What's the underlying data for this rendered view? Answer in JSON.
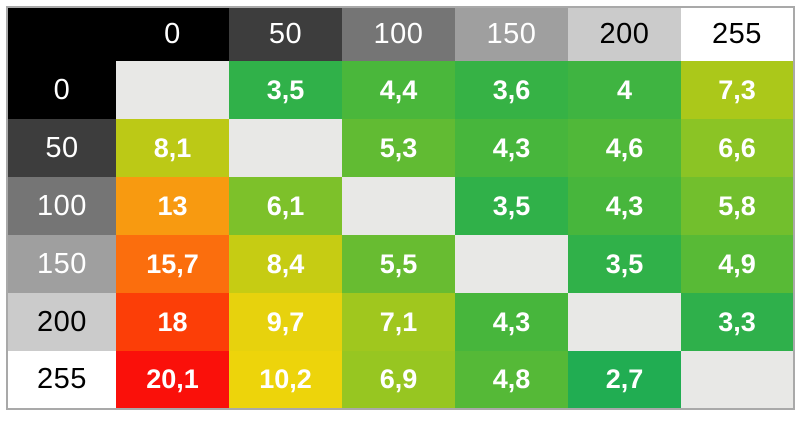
{
  "chart_data": {
    "type": "heatmap",
    "title": "",
    "col_headers": [
      "0",
      "50",
      "100",
      "150",
      "200",
      "255"
    ],
    "row_headers": [
      "0",
      "50",
      "100",
      "150",
      "200",
      "255"
    ],
    "labels": [
      [
        null,
        "3,5",
        "4,4",
        "3,6",
        "4",
        "7,3"
      ],
      [
        "8,1",
        null,
        "5,3",
        "4,3",
        "4,6",
        "6,6"
      ],
      [
        "13",
        "6,1",
        null,
        "3,5",
        "4,3",
        "5,8"
      ],
      [
        "15,7",
        "8,4",
        "5,5",
        null,
        "3,5",
        "4,9"
      ],
      [
        "18",
        "9,7",
        "7,1",
        "4,3",
        null,
        "3,3"
      ],
      [
        "20,1",
        "10,2",
        "6,9",
        "4,8",
        "2,7",
        null
      ]
    ],
    "values": [
      [
        null,
        3.5,
        4.4,
        3.6,
        4.0,
        7.3
      ],
      [
        8.1,
        null,
        5.3,
        4.3,
        4.6,
        6.6
      ],
      [
        13.0,
        6.1,
        null,
        3.5,
        4.3,
        5.8
      ],
      [
        15.7,
        8.4,
        5.5,
        null,
        3.5,
        4.9
      ],
      [
        18.0,
        9.7,
        7.1,
        4.3,
        null,
        3.3
      ],
      [
        20.1,
        10.2,
        6.9,
        4.8,
        2.7,
        null
      ]
    ],
    "cell_colors": [
      [
        null,
        "#30b149",
        "#4ab73b",
        "#36b245",
        "#3fb441",
        "#abc81a"
      ],
      [
        "#bcc916",
        null,
        "#61bb33",
        "#47b63c",
        "#50b839",
        "#8bc425"
      ],
      [
        "#f89a10",
        "#7dc12a",
        null,
        "#30b149",
        "#47b63c",
        "#72bf2d"
      ],
      [
        "#fb6e0d",
        "#c6cc13",
        "#68bc31",
        null,
        "#30b149",
        "#58ba36"
      ],
      [
        "#fc3e07",
        "#e7d20d",
        "#a0c71e",
        "#47b63c",
        null,
        "#2fb04b"
      ],
      [
        "#fa100a",
        "#edd40b",
        "#97c621",
        "#55b937",
        "#21ad52",
        null
      ]
    ],
    "header_bg": [
      "#000000",
      "#3d3d3d",
      "#757575",
      "#9f9f9f",
      "#cbcbcb",
      "#ffffff"
    ],
    "header_fg": [
      "#ffffff",
      "#ffffff",
      "#ffffff",
      "#ffffff",
      "#000000",
      "#000000"
    ],
    "corner_bg": "#000000",
    "empty_cell_color": "#e8e8e6",
    "value_text_color": "#ffffff",
    "border_color": "#a9a9a9",
    "legend_position": "none",
    "grid": false,
    "value_range": [
      2.7,
      20.1
    ],
    "colormap": "green-yellow-red (low to high)"
  }
}
